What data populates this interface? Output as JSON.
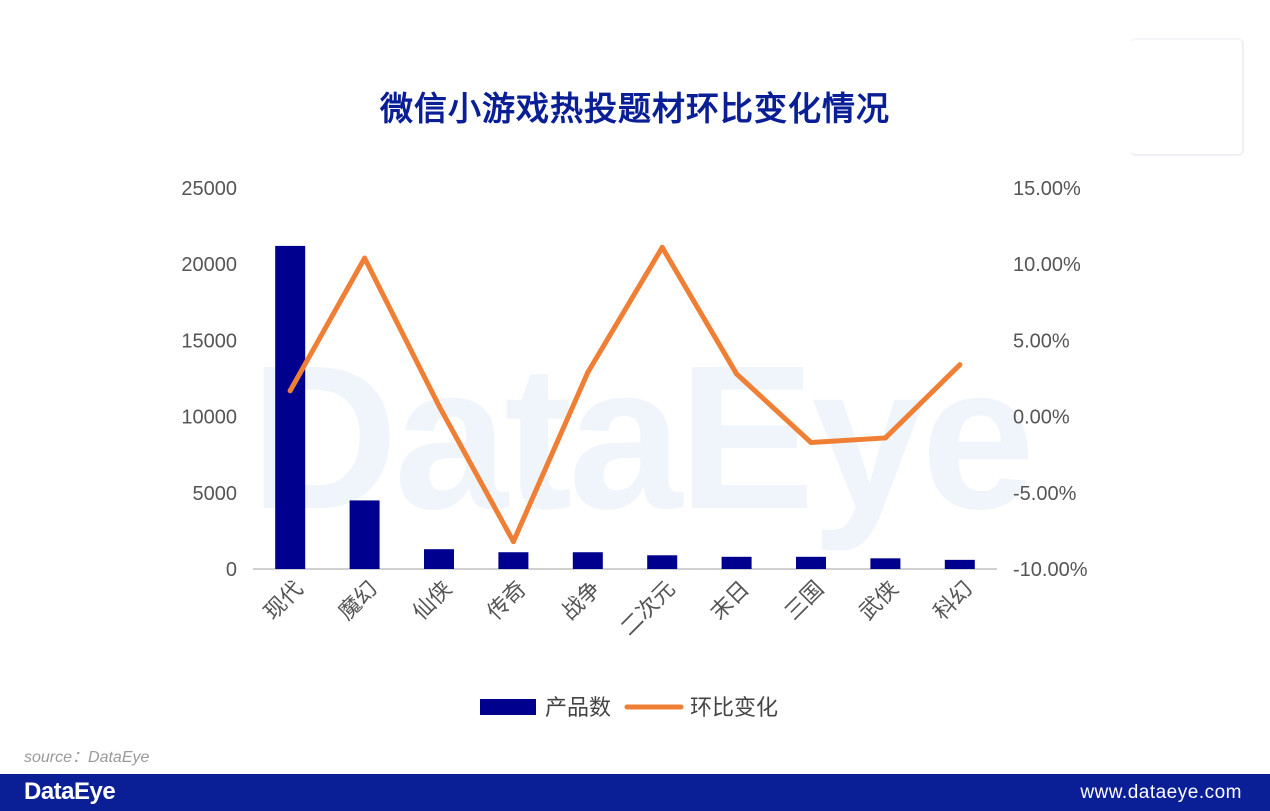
{
  "title": "微信小游戏热投题材环比变化情况",
  "watermark": "DataEye",
  "source": "source：DataEye",
  "footer": {
    "logo": "DataEye",
    "url": "www.dataeye.com"
  },
  "colors": {
    "bar": "#00008f",
    "line": "#ef7f35",
    "title": "#0a1e96",
    "footer": "#0a1e96"
  },
  "chart_data": {
    "type": "bar",
    "categories": [
      "现代",
      "魔幻",
      "仙侠",
      "传奇",
      "战争",
      "二次元",
      "末日",
      "三国",
      "武侠",
      "科幻"
    ],
    "series": [
      {
        "name": "产品数",
        "type": "bar",
        "axis": "left",
        "values": [
          21200,
          4500,
          1300,
          1100,
          1100,
          900,
          800,
          800,
          700,
          600
        ]
      },
      {
        "name": "环比变化",
        "type": "line",
        "axis": "right",
        "values": [
          0.017,
          0.104,
          0.007,
          -0.082,
          0.029,
          0.111,
          0.028,
          -0.017,
          -0.014,
          0.034
        ]
      }
    ],
    "y_left": {
      "min": 0,
      "max": 25000,
      "ticks": [
        "0",
        "5000",
        "10000",
        "15000",
        "20000",
        "25000"
      ]
    },
    "y_right": {
      "min": -0.1,
      "max": 0.15,
      "ticks": [
        "-10.00%",
        "-5.00%",
        "0.00%",
        "5.00%",
        "10.00%",
        "15.00%"
      ]
    },
    "legend": {
      "position": "bottom",
      "items": [
        "产品数",
        "环比变化"
      ]
    },
    "grid": false
  }
}
